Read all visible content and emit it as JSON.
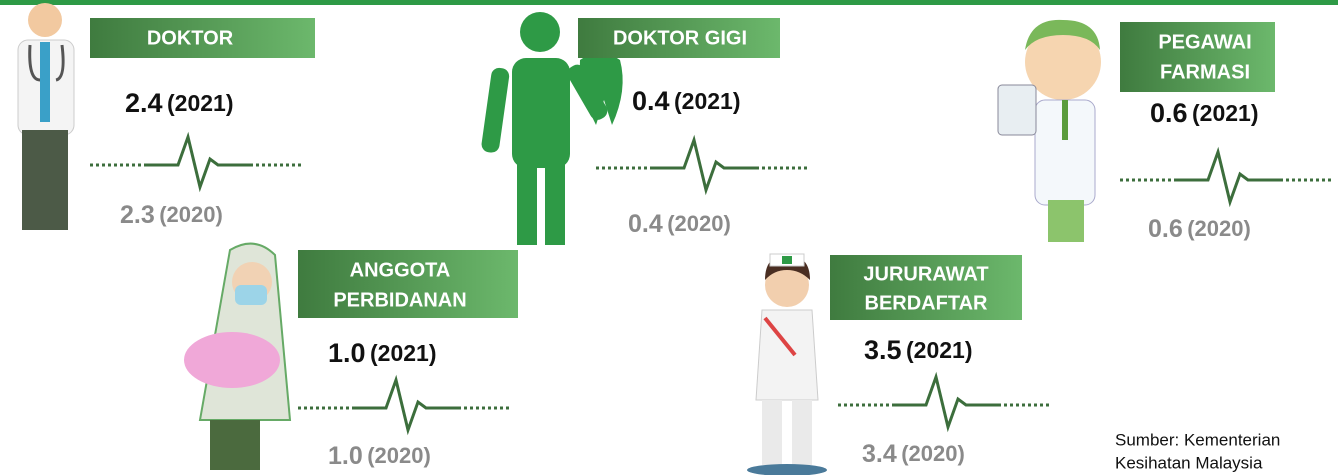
{
  "items": [
    {
      "label": [
        "DOKTOR"
      ],
      "value_2021": "2.4",
      "year_2021": "(2021)",
      "value_2020": "2.3",
      "year_2020": "(2020)"
    },
    {
      "label": [
        "DOKTOR GIGI"
      ],
      "value_2021": "0.4",
      "year_2021": "(2021)",
      "value_2020": "0.4",
      "year_2020": "(2020)"
    },
    {
      "label": [
        "PEGAWAI",
        "FARMASI"
      ],
      "value_2021": "0.6",
      "year_2021": "(2021)",
      "value_2020": "0.6",
      "year_2020": "(2020)"
    },
    {
      "label": [
        "ANGGOTA",
        "PERBIDANAN"
      ],
      "value_2021": "1.0",
      "year_2021": "(2021)",
      "value_2020": "1.0",
      "year_2020": "(2020)"
    },
    {
      "label": [
        "JURURAWAT",
        "BERDAFTAR"
      ],
      "value_2021": "3.5",
      "year_2021": "(2021)",
      "value_2020": "3.4",
      "year_2020": "(2020)"
    }
  ],
  "source": [
    "Sumber: Kementerian",
    "Kesihatan Malaysia"
  ]
}
